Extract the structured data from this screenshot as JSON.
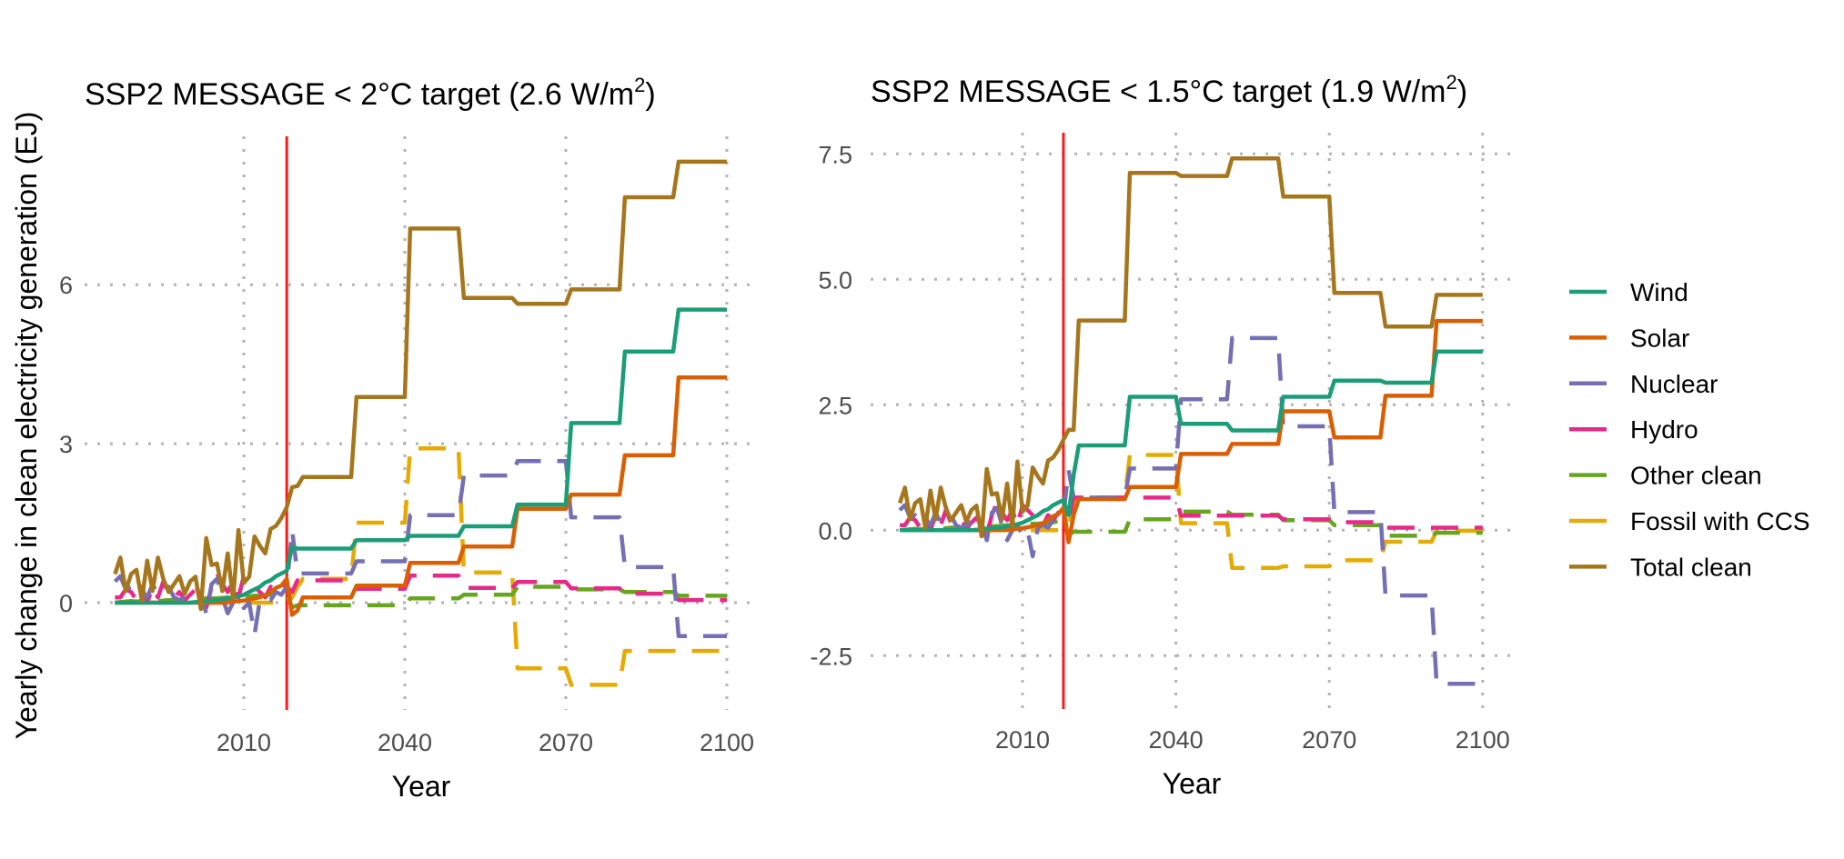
{
  "figure": {
    "y_axis_title": "Yearly change in clean electricity generation (EJ)",
    "x_axis_title": "Year",
    "reference_year": 2018,
    "reference_line_color": "#ff1a1a"
  },
  "legend": {
    "placement": "right",
    "items": [
      {
        "name": "Wind",
        "color": "#1b9e77",
        "dashed": false
      },
      {
        "name": "Solar",
        "color": "#d95f02",
        "dashed": false
      },
      {
        "name": "Nuclear",
        "color": "#7570b3",
        "dashed": true
      },
      {
        "name": "Hydro",
        "color": "#e7298a",
        "dashed": true
      },
      {
        "name": "Other clean",
        "color": "#66a61e",
        "dashed": true
      },
      {
        "name": "Fossil with CCS",
        "color": "#e6ab02",
        "dashed": true
      },
      {
        "name": "Total clean",
        "color": "#a6761d",
        "dashed": false
      }
    ]
  },
  "chart_data": [
    {
      "type": "line",
      "title": "SSP2 MESSAGE < 2°C target (2.6 W/m²)",
      "title_main": "SSP2 MESSAGE < 2°C target (2.6 W/m",
      "title_sup": "2",
      "title_end": ")",
      "xlabel": "Year",
      "ylabel": "Yearly change in clean electricity generation (EJ)",
      "xlim": [
        1986,
        2100
      ],
      "ylim": [
        -1.8,
        8.8
      ],
      "grid": true,
      "x_ticks": [
        2010,
        2040,
        2070,
        2100
      ],
      "x_tick_labels": [
        "2010",
        "2040",
        "2070",
        "2100"
      ],
      "y_ticks": [
        0,
        3,
        6
      ],
      "y_tick_labels": [
        "0",
        "3",
        "6"
      ],
      "vline": 2018,
      "historical_years": [
        1986,
        2018
      ],
      "transition_years": [
        2019,
        2020
      ],
      "step_periods": [
        "2021-2030",
        "2031-2040",
        "2041-2050",
        "2051-2060",
        "2061-2070",
        "2071-2080",
        "2081-2090",
        "2091-2100"
      ],
      "series": [
        {
          "name": "Wind",
          "historical": [
            0,
            0,
            0,
            0,
            0,
            0,
            0,
            0,
            0,
            0,
            0,
            0,
            0,
            0,
            0,
            0.01,
            0.02,
            0.03,
            0.04,
            0.05,
            0.06,
            0.08,
            0.1,
            0.12,
            0.15,
            0.2,
            0.25,
            0.3,
            0.38,
            0.42,
            0.5,
            0.55,
            0.6
          ],
          "transition": [
            1.05,
            1.02
          ],
          "steps": [
            1.02,
            1.18,
            1.26,
            1.44,
            1.85,
            3.39,
            4.74,
            5.53
          ]
        },
        {
          "name": "Solar",
          "historical": [
            0,
            0,
            0,
            0,
            0,
            0,
            0,
            0,
            0,
            0,
            0,
            0,
            0,
            0,
            0,
            0,
            0,
            0,
            0,
            0,
            0,
            0.01,
            0.02,
            0.03,
            0.04,
            0.06,
            0.08,
            0.1,
            0.14,
            0.2,
            0.28,
            0.32,
            0.45
          ],
          "transition": [
            -0.23,
            -0.15
          ],
          "steps": [
            0.1,
            0.32,
            0.75,
            1.06,
            1.77,
            2.04,
            2.78,
            4.25
          ]
        },
        {
          "name": "Nuclear",
          "historical": [
            0.4,
            0.5,
            0.25,
            0.3,
            0.15,
            0.2,
            0.1,
            0.35,
            0.15,
            0.25,
            0.3,
            0.1,
            0.05,
            0.1,
            0.2,
            0.3,
            0.15,
            -0.2,
            0.35,
            0.45,
            0.1,
            -0.2,
            0.0,
            0.1,
            -0.1,
            0.0,
            -0.6,
            0.05,
            0.1,
            0.05,
            0.2,
            0.15,
            0.3
          ],
          "transition": [
            1.37,
            0.55
          ],
          "steps": [
            0.55,
            0.78,
            1.65,
            2.4,
            2.67,
            1.61,
            0.67,
            -0.63
          ]
        },
        {
          "name": "Hydro",
          "historical": [
            0.1,
            0.1,
            0.25,
            0.2,
            0.05,
            0.3,
            0.0,
            0.3,
            0.1,
            0.4,
            0.15,
            0.1,
            0.2,
            0.05,
            0.15,
            0.25,
            0.1,
            -0.1,
            0.3,
            0.55,
            0.35,
            0.2,
            0.4,
            0.1,
            0.5,
            0.4,
            0.3,
            0.2,
            0.1,
            0.3,
            0.2,
            0.35,
            0.3
          ],
          "transition": [
            0.2,
            0.42
          ],
          "steps": [
            0.42,
            0.26,
            0.51,
            0.28,
            0.39,
            0.27,
            0.17,
            0.05
          ]
        },
        {
          "name": "Other clean",
          "historical": [
            0,
            0.01,
            0.02,
            0.03,
            0.02,
            0.03,
            0.04,
            0.04,
            0.03,
            0.04,
            0.05,
            0.05,
            0.05,
            0.06,
            0.06,
            0.07,
            0.07,
            0.08,
            0.08,
            0.08,
            0.09,
            0.1,
            0.1,
            0.1,
            0.11,
            0.12,
            0.13,
            0.13,
            0.14,
            0.15,
            0.16,
            0.18,
            0.15
          ],
          "transition": [
            -0.09,
            -0.05
          ],
          "steps": [
            -0.05,
            -0.05,
            0.08,
            0.15,
            0.3,
            0.25,
            0.2,
            0.13
          ]
        },
        {
          "name": "Fossil with CCS",
          "historical": [
            0,
            0,
            0,
            0,
            0,
            0,
            0,
            0,
            0,
            0,
            0,
            0,
            0,
            0,
            0,
            0,
            0,
            0,
            0,
            0,
            0,
            0,
            0,
            0,
            0,
            0,
            0,
            0,
            0,
            0,
            0,
            0,
            0
          ],
          "transition": [
            0.1,
            0.3
          ],
          "steps": [
            0.45,
            1.51,
            2.91,
            0.57,
            -1.24,
            -1.55,
            -0.91,
            -0.91
          ]
        },
        {
          "name": "Total clean",
          "historical": [
            0.54,
            0.85,
            0.22,
            0.54,
            0.62,
            0.05,
            0.79,
            0.22,
            0.85,
            0.45,
            0.2,
            0.35,
            0.5,
            0.17,
            0.4,
            0.49,
            -0.12,
            1.22,
            0.71,
            0.74,
            0.22,
            0.93,
            0.07,
            1.37,
            0.37,
            0.49,
            1.25,
            1.07,
            0.93,
            1.39,
            1.45,
            1.6,
            1.8
          ],
          "transition": [
            2.18,
            2.2
          ],
          "steps": [
            2.37,
            3.88,
            7.06,
            5.75,
            5.64,
            5.91,
            7.65,
            8.32
          ]
        }
      ]
    },
    {
      "type": "line",
      "title": "SSP2 MESSAGE < 1.5°C target (1.9 W/m²)",
      "title_main": "SSP2 MESSAGE < 1.5°C target (1.9 W/m",
      "title_sup": "2",
      "title_end": ")",
      "xlabel": "Year",
      "ylabel": "",
      "xlim": [
        1986,
        2100
      ],
      "ylim": [
        -3.4,
        7.9
      ],
      "grid": true,
      "x_ticks": [
        2010,
        2040,
        2070,
        2100
      ],
      "x_tick_labels": [
        "2010",
        "2040",
        "2070",
        "2100"
      ],
      "y_ticks": [
        -2.5,
        0,
        2.5,
        5,
        7.5
      ],
      "y_tick_labels": [
        "-2.5",
        "0.0",
        "2.5",
        "5.0",
        "7.5"
      ],
      "vline": 2018,
      "historical_years": [
        1986,
        2018
      ],
      "transition_years": [
        2019,
        2020
      ],
      "step_periods": [
        "2021-2030",
        "2031-2040",
        "2041-2050",
        "2051-2060",
        "2061-2070",
        "2071-2080",
        "2081-2090",
        "2091-2100"
      ],
      "series": [
        {
          "name": "Wind",
          "historical": [
            0,
            0,
            0,
            0,
            0,
            0,
            0,
            0,
            0,
            0,
            0,
            0,
            0,
            0,
            0,
            0.01,
            0.02,
            0.03,
            0.04,
            0.05,
            0.06,
            0.08,
            0.1,
            0.12,
            0.15,
            0.2,
            0.25,
            0.3,
            0.38,
            0.42,
            0.5,
            0.55,
            0.6
          ],
          "transition": [
            0.3,
            1.1
          ],
          "steps": [
            1.69,
            2.66,
            2.12,
            1.99,
            2.66,
            2.98,
            2.94,
            3.56
          ]
        },
        {
          "name": "Solar",
          "historical": [
            0,
            0,
            0,
            0,
            0,
            0,
            0,
            0,
            0,
            0,
            0,
            0,
            0,
            0,
            0,
            0,
            0,
            0,
            0,
            0,
            0,
            0.01,
            0.02,
            0.03,
            0.04,
            0.06,
            0.08,
            0.1,
            0.14,
            0.2,
            0.28,
            0.32,
            0.45
          ],
          "transition": [
            -0.24,
            0.3
          ],
          "steps": [
            0.62,
            0.86,
            1.52,
            1.72,
            2.37,
            1.85,
            2.68,
            4.17
          ]
        },
        {
          "name": "Nuclear",
          "historical": [
            0.4,
            0.5,
            0.25,
            0.3,
            0.15,
            0.2,
            0.1,
            0.35,
            0.15,
            0.25,
            0.3,
            0.1,
            0.05,
            0.1,
            0.2,
            0.3,
            0.15,
            -0.2,
            0.35,
            0.45,
            0.1,
            -0.2,
            0.0,
            0.1,
            -0.1,
            0.0,
            -0.52,
            0.05,
            0.1,
            0.05,
            0.2,
            0.15,
            0.3
          ],
          "transition": [
            1.2,
            0.65
          ],
          "steps": [
            0.65,
            1.23,
            2.61,
            3.83,
            2.07,
            0.36,
            -1.3,
            -3.06
          ]
        },
        {
          "name": "Hydro",
          "historical": [
            0.1,
            0.1,
            0.25,
            0.2,
            0.05,
            0.3,
            0.0,
            0.3,
            0.1,
            0.4,
            0.15,
            0.1,
            0.2,
            0.05,
            0.15,
            0.25,
            0.1,
            -0.1,
            0.3,
            0.55,
            0.35,
            0.2,
            0.4,
            0.1,
            0.5,
            0.4,
            0.3,
            0.2,
            0.1,
            0.3,
            0.2,
            0.35,
            0.3
          ],
          "transition": [
            0.2,
            0.65
          ],
          "steps": [
            0.65,
            0.65,
            0.29,
            0.29,
            0.22,
            0.16,
            0.05,
            0.05
          ]
        },
        {
          "name": "Other clean",
          "historical": [
            0,
            0.01,
            0.02,
            0.03,
            0.02,
            0.03,
            0.04,
            0.04,
            0.03,
            0.04,
            0.05,
            0.05,
            0.05,
            0.06,
            0.06,
            0.07,
            0.07,
            0.08,
            0.08,
            0.08,
            0.09,
            0.1,
            0.1,
            0.1,
            0.11,
            0.12,
            0.13,
            0.13,
            0.14,
            0.15,
            0.16,
            0.18,
            0.15
          ],
          "transition": [
            -0.09,
            -0.03
          ],
          "steps": [
            -0.03,
            0.22,
            0.37,
            0.31,
            0.2,
            0.1,
            -0.11,
            -0.05
          ]
        },
        {
          "name": "Fossil with CCS",
          "historical": [
            0,
            0,
            0,
            0,
            0,
            0,
            0,
            0,
            0,
            0,
            0,
            0,
            0,
            0,
            0,
            0,
            0,
            0,
            0,
            0,
            0,
            0,
            0,
            0,
            0,
            0,
            0,
            0,
            0,
            0,
            0,
            0,
            0
          ],
          "transition": [
            0.1,
            0.5
          ],
          "steps": [
            0.65,
            1.5,
            0.14,
            -0.75,
            -0.72,
            -0.6,
            -0.23,
            -0.01
          ]
        },
        {
          "name": "Total clean",
          "historical": [
            0.54,
            0.85,
            0.22,
            0.54,
            0.62,
            0.05,
            0.79,
            0.22,
            0.85,
            0.45,
            0.2,
            0.35,
            0.5,
            0.17,
            0.4,
            0.49,
            -0.12,
            1.22,
            0.71,
            0.74,
            0.22,
            0.93,
            0.07,
            1.37,
            0.37,
            0.49,
            1.25,
            1.07,
            0.93,
            1.39,
            1.45,
            1.6,
            1.8
          ],
          "transition": [
            2.0,
            2.0
          ],
          "steps": [
            4.18,
            7.12,
            7.06,
            7.41,
            6.65,
            4.73,
            4.06,
            4.69
          ]
        }
      ]
    }
  ]
}
